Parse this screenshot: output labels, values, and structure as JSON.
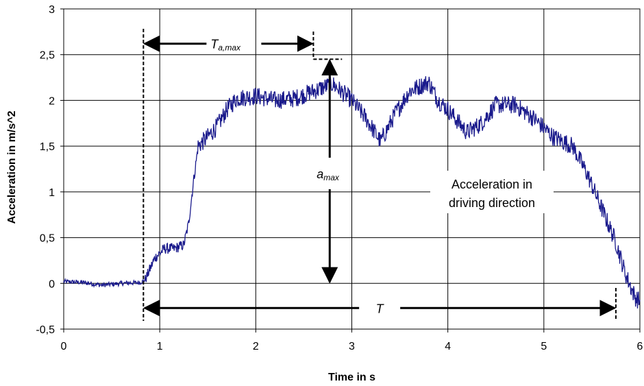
{
  "chart_data": {
    "type": "line",
    "xlabel": "Time in s",
    "ylabel": "Acceleration in m/s^2",
    "xlim": [
      0,
      6
    ],
    "ylim": [
      -0.5,
      3
    ],
    "x_ticks": [
      "0",
      "1",
      "2",
      "3",
      "4",
      "5",
      "6"
    ],
    "y_ticks": [
      "-0,5",
      "0",
      "0,5",
      "1",
      "1,5",
      "2",
      "2,5",
      "3"
    ],
    "grid": true,
    "legend": "none",
    "series_color": "#1a1a8c",
    "series": [
      {
        "points": [
          [
            0.0,
            0.02
          ],
          [
            0.2,
            0.01
          ],
          [
            0.4,
            -0.02
          ],
          [
            0.6,
            0.0
          ],
          [
            0.8,
            0.01
          ],
          [
            0.85,
            0.04
          ],
          [
            0.95,
            0.28
          ],
          [
            1.05,
            0.38
          ],
          [
            1.15,
            0.38
          ],
          [
            1.25,
            0.42
          ],
          [
            1.3,
            0.65
          ],
          [
            1.35,
            1.1
          ],
          [
            1.4,
            1.5
          ],
          [
            1.5,
            1.6
          ],
          [
            1.6,
            1.72
          ],
          [
            1.7,
            1.9
          ],
          [
            1.8,
            2.02
          ],
          [
            2.0,
            2.05
          ],
          [
            2.2,
            2.0
          ],
          [
            2.4,
            2.02
          ],
          [
            2.6,
            2.1
          ],
          [
            2.8,
            2.18
          ],
          [
            3.0,
            2.0
          ],
          [
            3.15,
            1.8
          ],
          [
            3.3,
            1.55
          ],
          [
            3.45,
            1.85
          ],
          [
            3.6,
            2.1
          ],
          [
            3.8,
            2.2
          ],
          [
            3.9,
            2.0
          ],
          [
            4.0,
            1.9
          ],
          [
            4.2,
            1.65
          ],
          [
            4.35,
            1.75
          ],
          [
            4.5,
            1.95
          ],
          [
            4.7,
            1.95
          ],
          [
            4.9,
            1.8
          ],
          [
            5.1,
            1.6
          ],
          [
            5.3,
            1.5
          ],
          [
            5.45,
            1.2
          ],
          [
            5.55,
            0.95
          ],
          [
            5.65,
            0.7
          ],
          [
            5.75,
            0.45
          ],
          [
            5.85,
            0.1
          ],
          [
            5.95,
            -0.15
          ],
          [
            6.0,
            -0.2
          ]
        ]
      }
    ],
    "annotations": {
      "t_amax": "T",
      "t_amax_sub": "a,max",
      "amax": "a",
      "amax_sub": "max",
      "t": "T",
      "curve_label_line1": "Acceleration in",
      "curve_label_line2": "driving direction"
    },
    "markers": {
      "start_time": 0.83,
      "peak_time": 2.6,
      "peak_value": 2.45,
      "end_time": 5.75,
      "amax_x": 2.77,
      "amax_base": 0,
      "t_amax_y": 2.62,
      "t_y": -0.27
    }
  }
}
